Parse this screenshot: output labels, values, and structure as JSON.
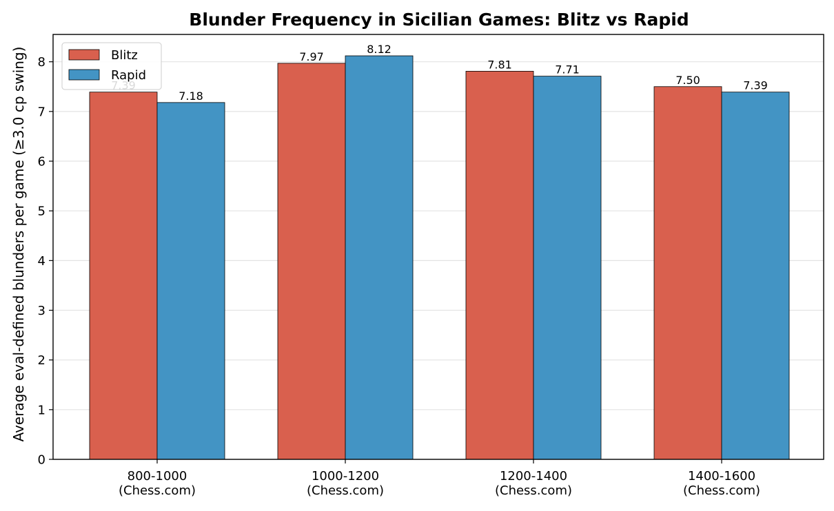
{
  "chart_data": {
    "type": "bar",
    "title": "Blunder Frequency in Sicilian Games: Blitz vs Rapid",
    "ylabel": "Average eval-defined blunders per game (≥3.0 cp swing)",
    "xlabel": "",
    "categories": [
      [
        "800-1000",
        "(Chess.com)"
      ],
      [
        "1000-1200",
        "(Chess.com)"
      ],
      [
        "1200-1400",
        "(Chess.com)"
      ],
      [
        "1400-1600",
        "(Chess.com)"
      ]
    ],
    "series": [
      {
        "name": "Blitz",
        "color": "#d9604e",
        "values": [
          7.39,
          7.97,
          7.81,
          7.5
        ],
        "labels": [
          "7.39",
          "7.97",
          "7.81",
          "7.50"
        ]
      },
      {
        "name": "Rapid",
        "color": "#4394c4",
        "values": [
          7.18,
          8.12,
          7.71,
          7.39
        ],
        "labels": [
          "7.18",
          "8.12",
          "7.71",
          "7.39"
        ]
      }
    ],
    "ylim": [
      0,
      8.55
    ],
    "yticks": [
      "0",
      "1",
      "2",
      "3",
      "4",
      "5",
      "6",
      "7",
      "8"
    ],
    "grid": "y",
    "legend_position": "top-left"
  }
}
